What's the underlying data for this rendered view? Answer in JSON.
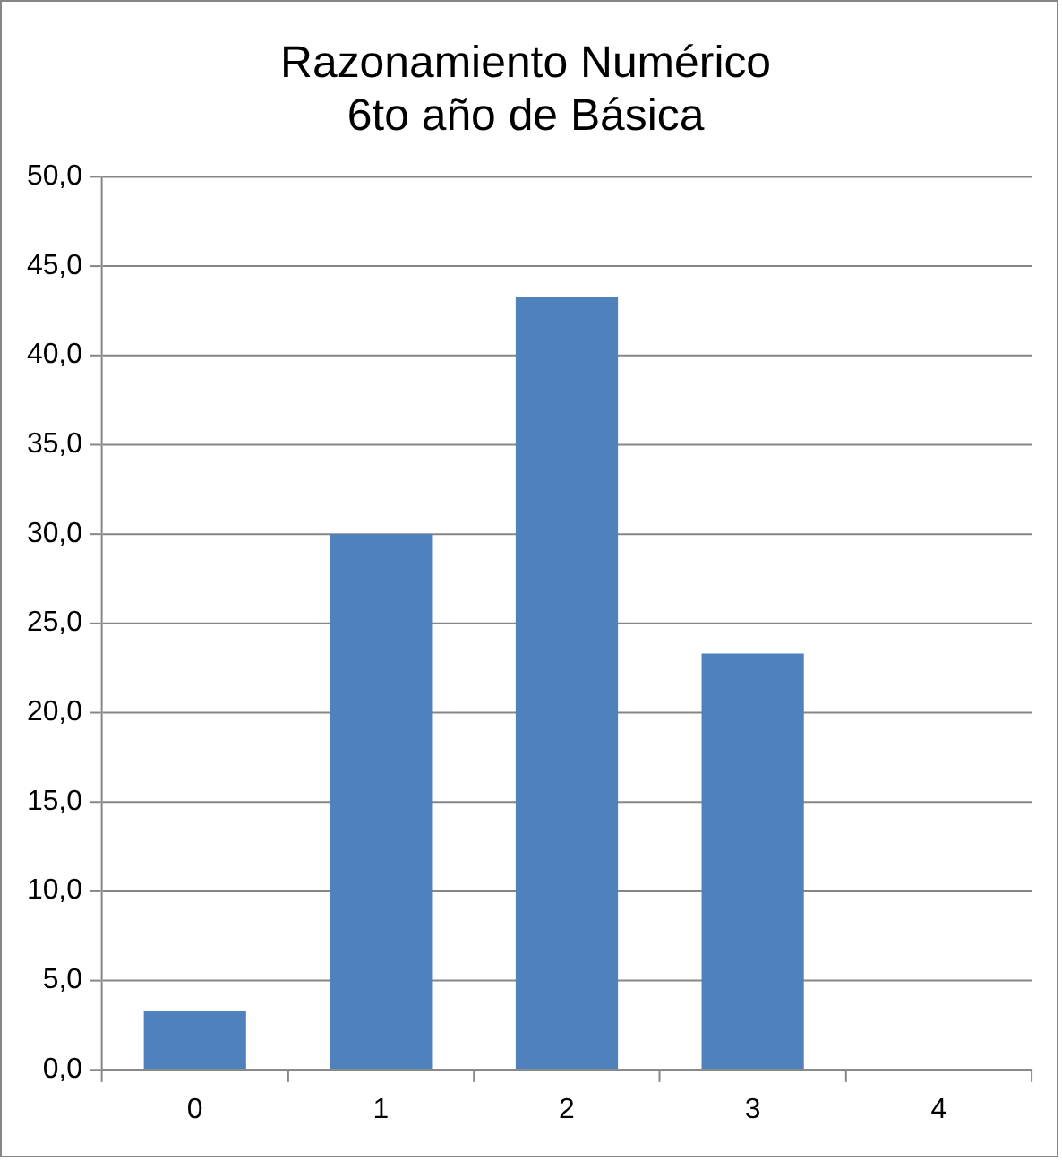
{
  "chart_data": {
    "type": "bar",
    "title": "Razonamiento Numérico\n6to año de Básica",
    "categories": [
      "0",
      "1",
      "2",
      "3",
      "4"
    ],
    "values": [
      3.3,
      30.0,
      43.3,
      23.3,
      0
    ],
    "color": "#4f81bd",
    "ylim": [
      0,
      50
    ],
    "yticks": [
      {
        "value": 0,
        "label": "0,0"
      },
      {
        "value": 5,
        "label": "5,0"
      },
      {
        "value": 10,
        "label": "10,0"
      },
      {
        "value": 15,
        "label": "15,0"
      },
      {
        "value": 20,
        "label": "20,0"
      },
      {
        "value": 25,
        "label": "25,0"
      },
      {
        "value": 30,
        "label": "30,0"
      },
      {
        "value": 35,
        "label": "35,0"
      },
      {
        "value": 40,
        "label": "40,0"
      },
      {
        "value": 45,
        "label": "45,0"
      },
      {
        "value": 50,
        "label": "50,0"
      }
    ],
    "grid": "y"
  }
}
